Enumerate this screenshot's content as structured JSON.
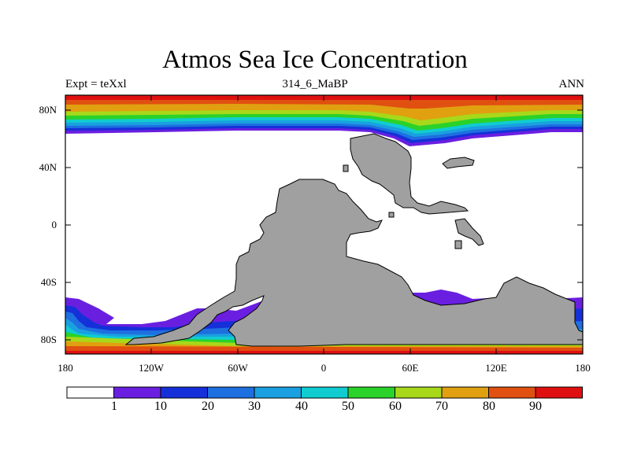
{
  "title": "Atmos Sea Ice Concentration",
  "subtitle_left": "Expt = teXxl",
  "subtitle_center": "314_6_MaBP",
  "subtitle_right": "ANN",
  "lat_labels": [
    "80N",
    "40N",
    "0",
    "40S",
    "80S"
  ],
  "lon_labels": [
    "180",
    "120W",
    "60W",
    "0",
    "60E",
    "120E",
    "180"
  ],
  "colorbar": {
    "labels": [
      "1",
      "10",
      "20",
      "30",
      "40",
      "50",
      "60",
      "70",
      "80",
      "90"
    ],
    "colors": [
      "#ffffff",
      "#6a1fe0",
      "#1530d8",
      "#1e6fe0",
      "#1aa0e0",
      "#10ccd0",
      "#2ad22a",
      "#a8d81a",
      "#e0a010",
      "#e05010",
      "#e01010"
    ]
  },
  "land_color": "#a0a0a0"
}
